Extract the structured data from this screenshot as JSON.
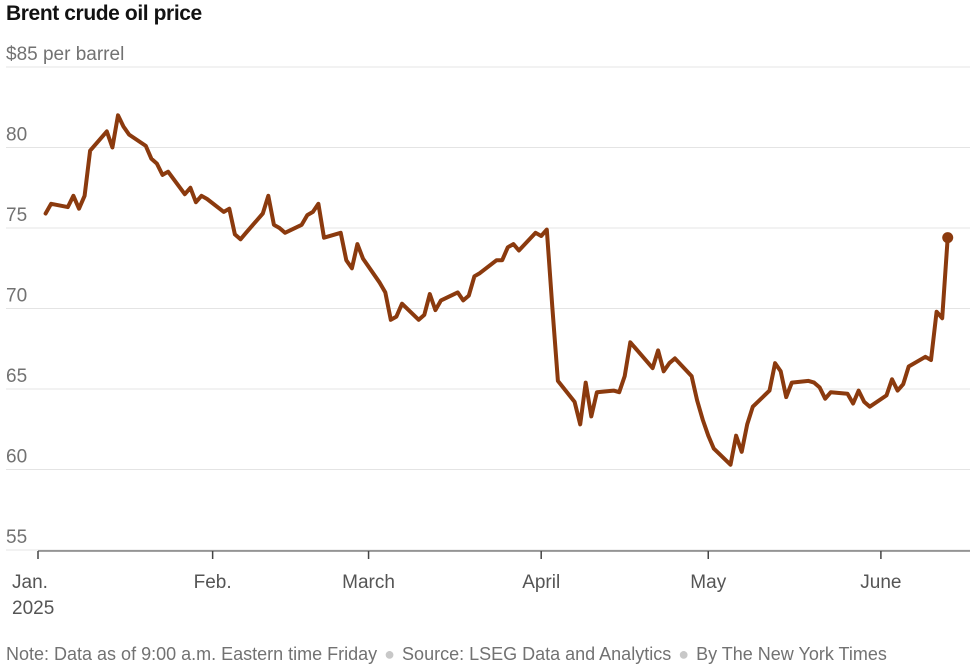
{
  "title": "Brent crude oil price",
  "note": {
    "data_as_of": "Note: Data as of 9:00 a.m. Eastern time Friday",
    "source": "Source: LSEG Data and Analytics",
    "byline": "By The New York Times"
  },
  "colors": {
    "line": "#8b3a0e",
    "grid": "#e4e4e4",
    "axis": "#444444",
    "text": "#727272"
  },
  "chart_data": {
    "type": "line",
    "title": "Brent crude oil price",
    "ylabel": "",
    "xlabel": "",
    "y_ticks": [
      {
        "value": 85,
        "label": "$85 per barrel"
      },
      {
        "value": 80,
        "label": "80"
      },
      {
        "value": 75,
        "label": "75"
      },
      {
        "value": 70,
        "label": "70"
      },
      {
        "value": 65,
        "label": "65"
      },
      {
        "value": 60,
        "label": "60"
      },
      {
        "value": 55,
        "label": "55"
      }
    ],
    "x_ticks": [
      {
        "date": "2025-01-01",
        "label": "Jan.",
        "sublabel": "2025"
      },
      {
        "date": "2025-02-01",
        "label": "Feb."
      },
      {
        "date": "2025-03-01",
        "label": "March"
      },
      {
        "date": "2025-04-01",
        "label": "April"
      },
      {
        "date": "2025-05-01",
        "label": "May"
      },
      {
        "date": "2025-06-01",
        "label": "June"
      }
    ],
    "xlim": [
      "2025-01-01",
      "2025-06-17"
    ],
    "ylim": [
      54,
      87
    ],
    "grid": true,
    "series": [
      {
        "end_marker": true,
        "points": [
          [
            "2025-01-02",
            75.9
          ],
          [
            "2025-01-03",
            76.5
          ],
          [
            "2025-01-06",
            76.3
          ],
          [
            "2025-01-07",
            77.0
          ],
          [
            "2025-01-08",
            76.2
          ],
          [
            "2025-01-09",
            77.0
          ],
          [
            "2025-01-10",
            79.8
          ],
          [
            "2025-01-13",
            81.0
          ],
          [
            "2025-01-14",
            80.0
          ],
          [
            "2025-01-15",
            82.0
          ],
          [
            "2025-01-16",
            81.3
          ],
          [
            "2025-01-17",
            80.8
          ],
          [
            "2025-01-20",
            80.1
          ],
          [
            "2025-01-21",
            79.3
          ],
          [
            "2025-01-22",
            79.0
          ],
          [
            "2025-01-23",
            78.3
          ],
          [
            "2025-01-24",
            78.5
          ],
          [
            "2025-01-27",
            77.1
          ],
          [
            "2025-01-28",
            77.5
          ],
          [
            "2025-01-29",
            76.6
          ],
          [
            "2025-01-30",
            77.0
          ],
          [
            "2025-01-31",
            76.8
          ],
          [
            "2025-02-03",
            76.0
          ],
          [
            "2025-02-04",
            76.2
          ],
          [
            "2025-02-05",
            74.6
          ],
          [
            "2025-02-06",
            74.3
          ],
          [
            "2025-02-07",
            74.7
          ],
          [
            "2025-02-10",
            75.9
          ],
          [
            "2025-02-11",
            77.0
          ],
          [
            "2025-02-12",
            75.2
          ],
          [
            "2025-02-13",
            75.0
          ],
          [
            "2025-02-14",
            74.7
          ],
          [
            "2025-02-17",
            75.2
          ],
          [
            "2025-02-18",
            75.8
          ],
          [
            "2025-02-19",
            76.0
          ],
          [
            "2025-02-20",
            76.5
          ],
          [
            "2025-02-21",
            74.4
          ],
          [
            "2025-02-24",
            74.7
          ],
          [
            "2025-02-25",
            73.0
          ],
          [
            "2025-02-26",
            72.5
          ],
          [
            "2025-02-27",
            74.0
          ],
          [
            "2025-02-28",
            73.1
          ],
          [
            "2025-03-03",
            71.6
          ],
          [
            "2025-03-04",
            71.0
          ],
          [
            "2025-03-05",
            69.3
          ],
          [
            "2025-03-06",
            69.5
          ],
          [
            "2025-03-07",
            70.3
          ],
          [
            "2025-03-10",
            69.3
          ],
          [
            "2025-03-11",
            69.6
          ],
          [
            "2025-03-12",
            70.9
          ],
          [
            "2025-03-13",
            69.9
          ],
          [
            "2025-03-14",
            70.5
          ],
          [
            "2025-03-17",
            71.0
          ],
          [
            "2025-03-18",
            70.5
          ],
          [
            "2025-03-19",
            70.8
          ],
          [
            "2025-03-20",
            72.0
          ],
          [
            "2025-03-21",
            72.2
          ],
          [
            "2025-03-24",
            73.0
          ],
          [
            "2025-03-25",
            73.0
          ],
          [
            "2025-03-26",
            73.8
          ],
          [
            "2025-03-27",
            74.0
          ],
          [
            "2025-03-28",
            73.6
          ],
          [
            "2025-03-31",
            74.7
          ],
          [
            "2025-04-01",
            74.5
          ],
          [
            "2025-04-02",
            74.9
          ],
          [
            "2025-04-03",
            70.1
          ],
          [
            "2025-04-04",
            65.5
          ],
          [
            "2025-04-07",
            64.2
          ],
          [
            "2025-04-08",
            62.8
          ],
          [
            "2025-04-09",
            65.4
          ],
          [
            "2025-04-10",
            63.3
          ],
          [
            "2025-04-11",
            64.8
          ],
          [
            "2025-04-14",
            64.9
          ],
          [
            "2025-04-15",
            64.8
          ],
          [
            "2025-04-16",
            65.8
          ],
          [
            "2025-04-17",
            67.9
          ],
          [
            "2025-04-21",
            66.3
          ],
          [
            "2025-04-22",
            67.4
          ],
          [
            "2025-04-23",
            66.1
          ],
          [
            "2025-04-24",
            66.6
          ],
          [
            "2025-04-25",
            66.9
          ],
          [
            "2025-04-28",
            65.8
          ],
          [
            "2025-04-29",
            64.3
          ],
          [
            "2025-04-30",
            63.1
          ],
          [
            "2025-05-01",
            62.1
          ],
          [
            "2025-05-02",
            61.3
          ],
          [
            "2025-05-05",
            60.3
          ],
          [
            "2025-05-06",
            62.1
          ],
          [
            "2025-05-07",
            61.1
          ],
          [
            "2025-05-08",
            62.8
          ],
          [
            "2025-05-09",
            63.9
          ],
          [
            "2025-05-12",
            64.9
          ],
          [
            "2025-05-13",
            66.6
          ],
          [
            "2025-05-14",
            66.1
          ],
          [
            "2025-05-15",
            64.5
          ],
          [
            "2025-05-16",
            65.4
          ],
          [
            "2025-05-19",
            65.5
          ],
          [
            "2025-05-20",
            65.4
          ],
          [
            "2025-05-21",
            65.1
          ],
          [
            "2025-05-22",
            64.4
          ],
          [
            "2025-05-23",
            64.8
          ],
          [
            "2025-05-26",
            64.7
          ],
          [
            "2025-05-27",
            64.1
          ],
          [
            "2025-05-28",
            64.9
          ],
          [
            "2025-05-29",
            64.2
          ],
          [
            "2025-05-30",
            63.9
          ],
          [
            "2025-06-02",
            64.6
          ],
          [
            "2025-06-03",
            65.6
          ],
          [
            "2025-06-04",
            64.9
          ],
          [
            "2025-06-05",
            65.3
          ],
          [
            "2025-06-06",
            66.4
          ],
          [
            "2025-06-09",
            67.0
          ],
          [
            "2025-06-10",
            66.8
          ],
          [
            "2025-06-11",
            69.8
          ],
          [
            "2025-06-12",
            69.4
          ],
          [
            "2025-06-13",
            74.4
          ]
        ]
      }
    ]
  }
}
